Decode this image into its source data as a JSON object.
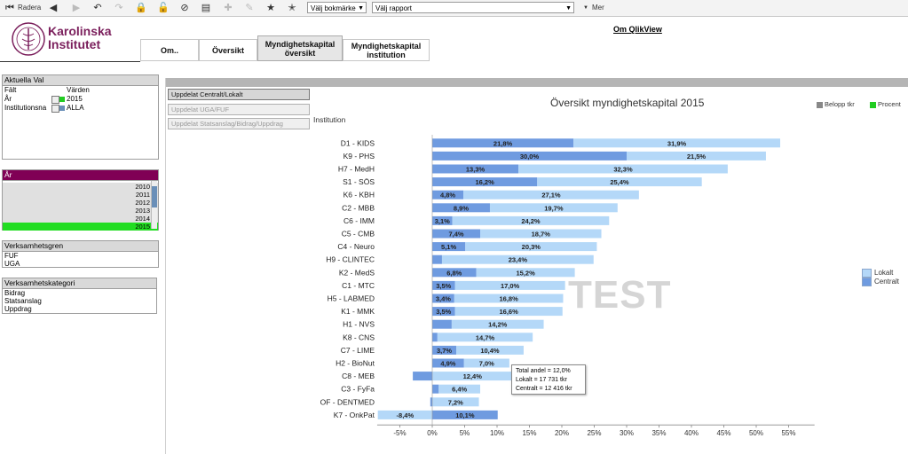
{
  "toolbar": {
    "radera_label": "Radera",
    "bookmark_select": "Välj bokmärke",
    "report_select": "Välj rapport",
    "more_label": "Mer",
    "icons": [
      "first-icon",
      "back-icon",
      "forward-icon",
      "lock-icon",
      "unlock-icon",
      "clear-icon",
      "chart-icon",
      "plus-icon",
      "pin-icon",
      "star-icon",
      "star-add-icon"
    ]
  },
  "logo": {
    "line1": "Karolinska",
    "line2": "Institutet",
    "seal_text": "KAROLINSKA INSTITUTET ANNO 1810"
  },
  "tabs": [
    {
      "label": "Om..",
      "active": false
    },
    {
      "label": "Översikt",
      "active": false
    },
    {
      "label": "Myndighetskapital översikt",
      "active": true
    },
    {
      "label": "Myndighetskapital institution",
      "active": false
    }
  ],
  "om_link": "Om QlikView",
  "current_selections": {
    "title": "Aktuella Val",
    "col_field": "Fält",
    "col_values": "Värden",
    "rows": [
      {
        "field": "År",
        "value": "2015"
      },
      {
        "field": "Institutionsna",
        "value": "ALLA"
      }
    ]
  },
  "year_list": {
    "title": "År",
    "items": [
      "2010",
      "2011",
      "2012",
      "2013",
      "2014",
      "2015"
    ],
    "selected": "2015"
  },
  "verksamhetsgren": {
    "title": "Verksamhetsgren",
    "items": [
      "FUF",
      "UGA"
    ]
  },
  "verksamhetskategori": {
    "title": "Verksamhetskategori",
    "items": [
      "Bidrag",
      "Statsanslag",
      "Uppdrag"
    ]
  },
  "side_buttons": [
    {
      "label": "Uppdelat Centralt/Lokalt",
      "active": true
    },
    {
      "label": "Uppdelat UGA/FUF",
      "active": false
    },
    {
      "label": "Uppdelat Statsanslag/Bidrag/Uppdrag",
      "active": false
    }
  ],
  "legend_top": [
    {
      "label": "Belopp tkr",
      "color": "#888888"
    },
    {
      "label": "Procent",
      "color": "#22cc22"
    }
  ],
  "watermark": "TEST",
  "tooltip": {
    "line1": "Total andel = 12,0%",
    "line2": "Lokalt = 17 731 tkr",
    "line3": "Centralt = 12 416 tkr"
  },
  "chart_data": {
    "type": "bar",
    "orientation": "horizontal",
    "stacked": true,
    "title": "Översikt myndighetskapital 2015",
    "ylabel": "Institution",
    "xlim": [
      -8,
      55
    ],
    "x_ticks": [
      "-5%",
      "0%",
      "5%",
      "10%",
      "15%",
      "20%",
      "25%",
      "30%",
      "35%",
      "40%",
      "45%",
      "50%",
      "55%"
    ],
    "legend_placement": "right",
    "categories": [
      "D1 - KIDS",
      "K9 - PHS",
      "H7 - MedH",
      "S1 - SÖS",
      "K6 - KBH",
      "C2 - MBB",
      "C6 - IMM",
      "C5 - CMB",
      "C4 - Neuro",
      "H9 - CLINTEC",
      "K2 - MedS",
      "C1 - MTC",
      "H5 - LABMED",
      "K1 - MMK",
      "H1 - NVS",
      "K8 - CNS",
      "C7 - LIME",
      "H2 - BioNut",
      "C8 - MEB",
      "C3 - FyFa",
      "OF - DENTMED",
      "K7 - OnkPat"
    ],
    "series": [
      {
        "name": "Centralt",
        "color": "#6f9be0",
        "values": [
          21.8,
          30.0,
          13.3,
          16.2,
          4.8,
          8.9,
          3.1,
          7.4,
          5.1,
          1.5,
          6.8,
          3.5,
          3.4,
          3.5,
          3.0,
          0.8,
          3.7,
          4.9,
          -3.0,
          1.0,
          -0.3,
          10.1
        ],
        "labels": [
          "21,8%",
          "30,0%",
          "13,3%",
          "16,2%",
          "4,8%",
          "8,9%",
          "3,1%",
          "7,4%",
          "5,1%",
          "",
          "6,8%",
          "3,5%",
          "3,4%",
          "3,5%",
          "",
          "",
          "3,7%",
          "4,9%",
          "",
          "",
          "",
          "10,1%"
        ]
      },
      {
        "name": "Lokalt",
        "color": "#b4d8f8",
        "values": [
          31.9,
          21.5,
          32.3,
          25.4,
          27.1,
          19.7,
          24.2,
          18.7,
          20.3,
          23.4,
          15.2,
          17.0,
          16.8,
          16.6,
          14.2,
          14.7,
          10.4,
          7.0,
          12.4,
          6.4,
          7.2,
          -8.4
        ],
        "labels": [
          "31,9%",
          "21,5%",
          "32,3%",
          "25,4%",
          "27,1%",
          "19,7%",
          "24,2%",
          "18,7%",
          "20,3%",
          "23,4%",
          "15,2%",
          "17,0%",
          "16,8%",
          "16,6%",
          "14,2%",
          "14,7%",
          "10,4%",
          "7,0%",
          "12,4%",
          "6,4%",
          "7,2%",
          "-8,4%"
        ]
      }
    ]
  }
}
